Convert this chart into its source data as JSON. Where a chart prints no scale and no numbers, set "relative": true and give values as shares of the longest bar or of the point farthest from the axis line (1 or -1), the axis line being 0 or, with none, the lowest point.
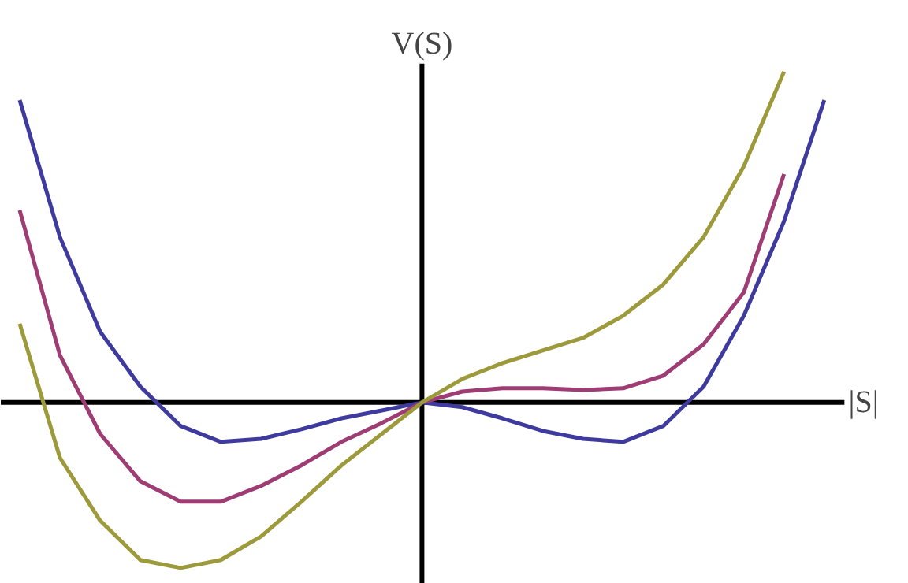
{
  "chart_data": {
    "type": "line",
    "relative": true,
    "xlabel": "|S|",
    "ylabel": "V(S)",
    "grid": false,
    "marker": "none",
    "line_style": "solid",
    "categories": [
      null,
      null,
      null,
      null,
      null,
      null,
      null,
      null,
      null,
      null,
      null,
      null,
      null,
      null,
      null,
      null,
      null,
      null,
      null,
      null,
      null
    ],
    "series": [
      {
        "color": "#3f3b9e",
        "values": [
          0.914,
          0.5,
          0.214,
          0.048,
          -0.071,
          -0.119,
          -0.11,
          -0.081,
          -0.048,
          -0.024,
          0,
          -0.014,
          -0.048,
          -0.086,
          -0.11,
          -0.119,
          -0.071,
          0.048,
          0.262,
          0.548,
          0.914
        ]
      },
      {
        "color": "#9e3c74",
        "values": [
          0.581,
          0.143,
          -0.095,
          -0.238,
          -0.3,
          -0.3,
          -0.252,
          -0.19,
          -0.119,
          -0.062,
          0,
          0.033,
          0.043,
          0.043,
          0.038,
          0.043,
          0.081,
          0.176,
          0.333,
          0.69,
          null
        ]
      },
      {
        "color": "#9c9a3b",
        "values": [
          0.238,
          -0.167,
          -0.357,
          -0.476,
          -0.5,
          -0.476,
          -0.405,
          -0.3,
          -0.19,
          -0.095,
          0,
          0.071,
          0.119,
          0.157,
          0.195,
          0.262,
          0.357,
          0.5,
          0.714,
          1.0,
          null
        ]
      }
    ]
  }
}
